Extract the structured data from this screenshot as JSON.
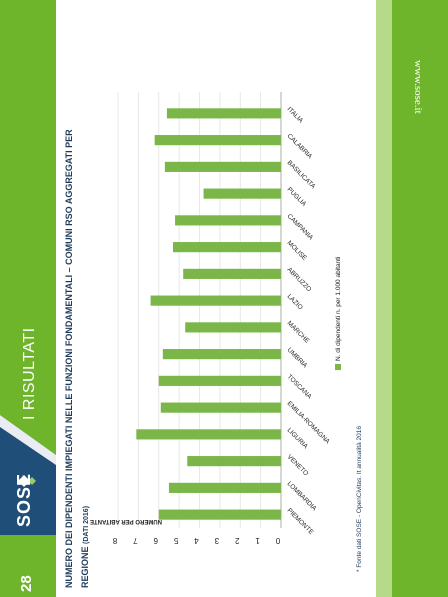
{
  "slide": {
    "section_title": "I RISULTATI",
    "logo_text": "SOSE",
    "website": "www.sose.it",
    "page_number": "28",
    "footnote": "* Fonte dati SOSE - OpenCivitas. It annualità 2016"
  },
  "chart_data": {
    "type": "bar",
    "title_line1": "NUMERO DEI DIPENDENTI IMPIEGATI NELLE FUNZIONI FONDAMENTALI – COMUNI RSO AGGREGATI PER",
    "title_line2": "REGIONE",
    "title_note": "(DATI 2016)",
    "ylabel": "NUMERO PER ABITANTE",
    "ylim": [
      0,
      8
    ],
    "yticks": [
      0,
      1,
      2,
      3,
      4,
      5,
      6,
      7,
      8
    ],
    "grid": true,
    "legend_position": "bottom",
    "categories": [
      "PIEMONTE",
      "LOMBARDIA",
      "VENETO",
      "LIGURIA",
      "EMILIA-ROMAGNA",
      "TOSCANA",
      "UMBRIA",
      "MARCHE",
      "LAZIO",
      "ABRUZZO",
      "MOLISE",
      "CAMPANIA",
      "PUGLIA",
      "BASILICATA",
      "CALABRIA",
      "ITALIA"
    ],
    "series": [
      {
        "name": "N. di dipendenti n. per 1.000 abitanti",
        "color": "#7ab648",
        "values": [
          6.0,
          5.5,
          4.6,
          7.1,
          5.9,
          6.0,
          5.8,
          4.7,
          6.4,
          4.8,
          5.3,
          5.2,
          3.8,
          5.7,
          6.2,
          5.6
        ]
      }
    ]
  }
}
